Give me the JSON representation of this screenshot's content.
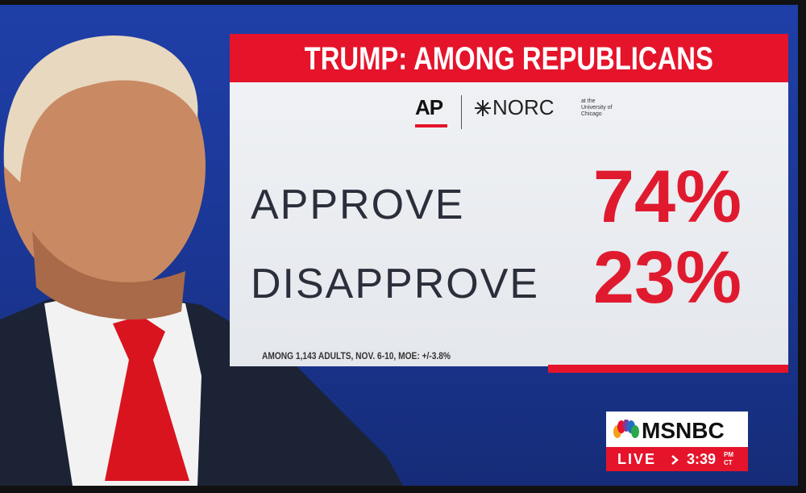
{
  "header": {
    "title": "TRUMP: AMONG REPUBLICANS"
  },
  "logos": {
    "ap": "AP",
    "norc": "NORC",
    "norc_note": "at the University of Chicago"
  },
  "results": [
    {
      "label": "APPROVE",
      "value": "74%"
    },
    {
      "label": "DISAPPROVE",
      "value": "23%"
    }
  ],
  "footnote": "AMONG 1,143 ADULTS, NOV. 6-10, MOE: +/-3.8%",
  "bug": {
    "network": "MSNBC",
    "live": "LIVE",
    "time": "3:39",
    "ampm": "PM",
    "zone": "CT"
  }
}
